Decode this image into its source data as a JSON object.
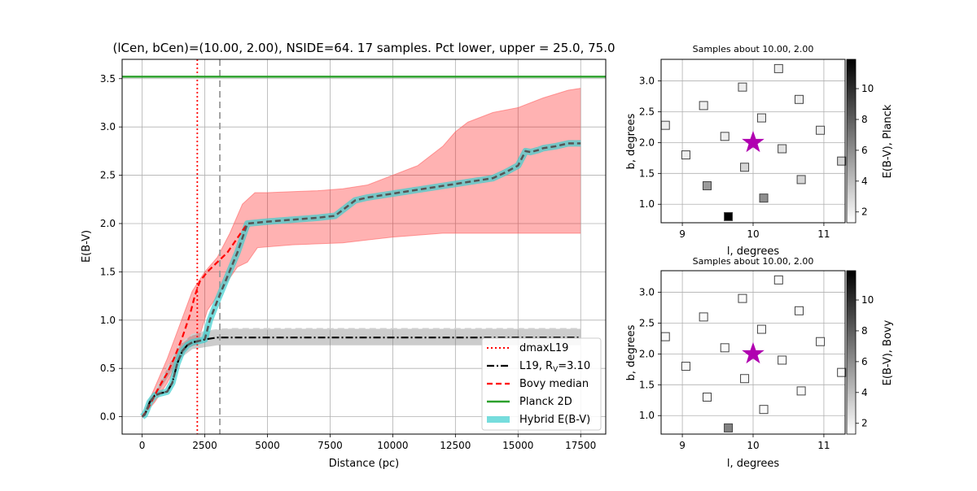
{
  "chart_data": [
    {
      "type": "line",
      "title": "(lCen, bCen)=(10.00, 2.00), NSIDE=64. 17 samples. Pct lower, upper = 25.0, 75.0",
      "xlabel": "Distance (pc)",
      "ylabel": "E(B-V)",
      "xlim": [
        -800,
        18500
      ],
      "ylim": [
        -0.18,
        3.7
      ],
      "xticks": [
        0,
        2500,
        5000,
        7500,
        10000,
        12500,
        15000,
        17500
      ],
      "xtick_labels": [
        "0",
        "2500",
        "5000",
        "7500",
        "10000",
        "12500",
        "15000",
        "17500"
      ],
      "yticks": [
        0.0,
        0.5,
        1.0,
        1.5,
        2.0,
        2.5,
        3.0,
        3.5
      ],
      "ytick_labels": [
        "0.0",
        "0.5",
        "1.0",
        "1.5",
        "2.0",
        "2.5",
        "3.0",
        "3.5"
      ],
      "grid": true,
      "legend_placement": "lower-right",
      "vlines": [
        {
          "x": 2200,
          "name": "dmaxL19",
          "color": "#ff0000",
          "style": "dotted"
        },
        {
          "x": 3100,
          "color": "#999999",
          "style": "dashed"
        }
      ],
      "hline": {
        "y": 3.52,
        "name": "Planck 2D",
        "color": "#2ca02c"
      },
      "series": [
        {
          "name": "Bovy median",
          "color": "#ff0000",
          "x": [
            0,
            150,
            300,
            500,
            700,
            1000,
            1300,
            1600,
            1900,
            2100,
            2300,
            2600,
            3000,
            3400,
            3800,
            4200
          ],
          "y": [
            0.0,
            0.05,
            0.12,
            0.22,
            0.32,
            0.45,
            0.62,
            0.82,
            1.05,
            1.25,
            1.4,
            1.5,
            1.6,
            1.7,
            1.85,
            2.0
          ]
        },
        {
          "name": "Bovy lower",
          "color": "#ff8080",
          "x": [
            0,
            500,
            1000,
            1500,
            1800,
            2200,
            2600,
            3000,
            3400,
            3800,
            4200,
            4600,
            6000,
            8000,
            9000,
            10000,
            11000,
            12000,
            13000,
            14000,
            15000,
            16000,
            17500
          ],
          "y": [
            0.0,
            0.15,
            0.35,
            0.6,
            0.72,
            0.75,
            1.1,
            1.25,
            1.4,
            1.55,
            1.6,
            1.75,
            1.78,
            1.8,
            1.83,
            1.86,
            1.88,
            1.9,
            1.9,
            1.9,
            1.9,
            1.9,
            1.9
          ]
        },
        {
          "name": "Bovy upper",
          "color": "#ff8080",
          "x": [
            0,
            500,
            1000,
            1500,
            2000,
            2500,
            3000,
            3500,
            4000,
            4500,
            5000,
            6000,
            7000,
            8000,
            9000,
            10000,
            11000,
            12000,
            12500,
            13000,
            14000,
            15000,
            16000,
            17000,
            17500
          ],
          "y": [
            0.0,
            0.3,
            0.6,
            0.95,
            1.3,
            1.5,
            1.65,
            1.9,
            2.2,
            2.32,
            2.32,
            2.33,
            2.34,
            2.36,
            2.4,
            2.5,
            2.6,
            2.8,
            2.95,
            3.05,
            3.15,
            3.2,
            3.3,
            3.38,
            3.4
          ]
        },
        {
          "name": "L19, R_V=3.10",
          "color": "#000000",
          "x": [
            0,
            100,
            200,
            300,
            500,
            700,
            1000,
            1200,
            1400,
            1600,
            1800,
            2000,
            2200,
            2500,
            3000,
            3500,
            17500
          ],
          "y": [
            0.0,
            0.02,
            0.08,
            0.15,
            0.22,
            0.24,
            0.26,
            0.35,
            0.55,
            0.68,
            0.74,
            0.77,
            0.78,
            0.8,
            0.82,
            0.82,
            0.82
          ]
        },
        {
          "name": "L19 lower",
          "color": "#aaaaaa",
          "x": [
            0,
            1500,
            2000,
            2500,
            3000,
            3500,
            17500
          ],
          "y": [
            0.0,
            0.6,
            0.7,
            0.72,
            0.74,
            0.74,
            0.74
          ]
        },
        {
          "name": "L19 upper",
          "color": "#aaaaaa",
          "x": [
            0,
            1500,
            2000,
            2500,
            3000,
            3500,
            17500
          ],
          "y": [
            0.0,
            0.75,
            0.85,
            0.88,
            0.9,
            0.91,
            0.91
          ]
        },
        {
          "name": "Hybrid E(B-V)",
          "color": "#3ccfcf",
          "x": [
            0,
            100,
            200,
            300,
            500,
            700,
            1000,
            1200,
            1400,
            1600,
            1800,
            2000,
            2200,
            2500,
            2700,
            3000,
            3400,
            3800,
            4200,
            5000,
            6000,
            7000,
            7700,
            8000,
            8500,
            9000,
            10000,
            11000,
            12000,
            13000,
            14000,
            14500,
            15000,
            15300,
            15500,
            15800,
            16000,
            16500,
            17000,
            17500
          ],
          "y": [
            0.0,
            0.02,
            0.08,
            0.15,
            0.22,
            0.24,
            0.26,
            0.35,
            0.55,
            0.68,
            0.74,
            0.77,
            0.78,
            0.8,
            1.0,
            1.2,
            1.45,
            1.7,
            2.0,
            2.02,
            2.04,
            2.06,
            2.08,
            2.14,
            2.24,
            2.27,
            2.31,
            2.35,
            2.39,
            2.43,
            2.47,
            2.53,
            2.6,
            2.75,
            2.74,
            2.76,
            2.78,
            2.8,
            2.83,
            2.83
          ]
        }
      ],
      "legend": [
        {
          "label": "dmaxL19",
          "color": "#ff0000",
          "style": "dotted"
        },
        {
          "label": "L19, R",
          "sub": "V",
          "suffix": "=3.10",
          "color": "#000000",
          "style": "dashdot"
        },
        {
          "label": "Bovy median",
          "color": "#ff0000",
          "style": "dashed"
        },
        {
          "label": "Planck 2D",
          "color": "#2ca02c",
          "style": "solid"
        },
        {
          "label": "Hybrid E(B-V)",
          "color": "#3ccfcf",
          "style": "thick"
        }
      ]
    },
    {
      "type": "scatter",
      "title": "Samples about 10.00, 2.00",
      "xlabel": "l, degrees",
      "ylabel": "b, degrees",
      "xlim": [
        8.7,
        11.3
      ],
      "ylim": [
        0.7,
        3.35
      ],
      "xticks": [
        9,
        10,
        11
      ],
      "yticks": [
        1.0,
        1.5,
        2.0,
        2.5,
        3.0
      ],
      "ytick_labels": [
        "1.0",
        "1.5",
        "2.0",
        "2.5",
        "3.0"
      ],
      "grid": true,
      "center": {
        "x": 10.0,
        "y": 2.0,
        "color": "#b000b0"
      },
      "colorbar": {
        "label": "E(B-V), Planck",
        "min": 1.3,
        "max": 11.9,
        "ticks": [
          2,
          4,
          6,
          8,
          10
        ]
      },
      "points": [
        {
          "x": 8.76,
          "y": 2.28,
          "v": 2.0
        },
        {
          "x": 9.05,
          "y": 1.8,
          "v": 2.0
        },
        {
          "x": 9.3,
          "y": 2.6,
          "v": 2.0
        },
        {
          "x": 9.35,
          "y": 1.3,
          "v": 5.5
        },
        {
          "x": 9.6,
          "y": 2.1,
          "v": 2.0
        },
        {
          "x": 9.65,
          "y": 0.8,
          "v": 11.8
        },
        {
          "x": 9.85,
          "y": 2.9,
          "v": 2.0
        },
        {
          "x": 9.88,
          "y": 1.6,
          "v": 3.0
        },
        {
          "x": 10.12,
          "y": 2.4,
          "v": 2.0
        },
        {
          "x": 10.15,
          "y": 1.1,
          "v": 6.0
        },
        {
          "x": 10.36,
          "y": 3.2,
          "v": 2.0
        },
        {
          "x": 10.41,
          "y": 1.9,
          "v": 2.5
        },
        {
          "x": 10.65,
          "y": 2.7,
          "v": 2.0
        },
        {
          "x": 10.68,
          "y": 1.4,
          "v": 3.0
        },
        {
          "x": 10.95,
          "y": 2.2,
          "v": 2.0
        },
        {
          "x": 11.25,
          "y": 1.7,
          "v": 3.0
        }
      ]
    },
    {
      "type": "scatter",
      "title": "Samples about 10.00, 2.00",
      "xlabel": "l, degrees",
      "ylabel": "b, degrees",
      "xlim": [
        8.7,
        11.3
      ],
      "ylim": [
        0.7,
        3.35
      ],
      "xticks": [
        9,
        10,
        11
      ],
      "yticks": [
        1.0,
        1.5,
        2.0,
        2.5,
        3.0
      ],
      "ytick_labels": [
        "1.0",
        "1.5",
        "2.0",
        "2.5",
        "3.0"
      ],
      "grid": true,
      "center": {
        "x": 10.0,
        "y": 2.0,
        "color": "#b000b0"
      },
      "colorbar": {
        "label": "E(B-V), Bovy",
        "min": 1.3,
        "max": 11.9,
        "ticks": [
          2,
          4,
          6,
          8,
          10
        ]
      },
      "points": [
        {
          "x": 8.76,
          "y": 2.28,
          "v": 1.5
        },
        {
          "x": 9.05,
          "y": 1.8,
          "v": 1.5
        },
        {
          "x": 9.3,
          "y": 2.6,
          "v": 1.5
        },
        {
          "x": 9.35,
          "y": 1.3,
          "v": 1.5
        },
        {
          "x": 9.6,
          "y": 2.1,
          "v": 1.5
        },
        {
          "x": 9.65,
          "y": 0.8,
          "v": 6.5
        },
        {
          "x": 9.85,
          "y": 2.9,
          "v": 1.5
        },
        {
          "x": 9.88,
          "y": 1.6,
          "v": 1.5
        },
        {
          "x": 10.12,
          "y": 2.4,
          "v": 1.5
        },
        {
          "x": 10.15,
          "y": 1.1,
          "v": 1.5
        },
        {
          "x": 10.36,
          "y": 3.2,
          "v": 1.5
        },
        {
          "x": 10.41,
          "y": 1.9,
          "v": 1.5
        },
        {
          "x": 10.65,
          "y": 2.7,
          "v": 1.5
        },
        {
          "x": 10.68,
          "y": 1.4,
          "v": 1.5
        },
        {
          "x": 10.95,
          "y": 2.2,
          "v": 1.5
        },
        {
          "x": 11.25,
          "y": 1.7,
          "v": 1.5
        }
      ]
    }
  ]
}
